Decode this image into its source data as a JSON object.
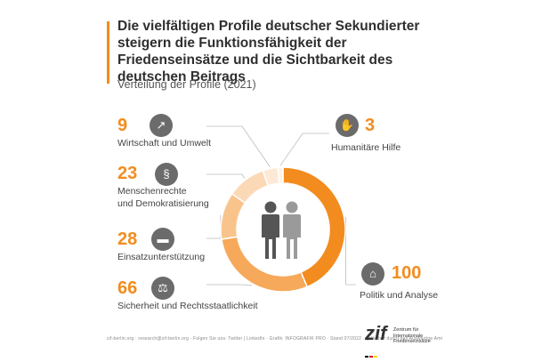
{
  "header": {
    "title": "Die vielfältigen Profile deutscher Sekundierter steigern die Funktionsfähigkeit der Friedenseinsätze und die Sichtbarkeit des deutschen Beitrags",
    "subtitle": "Verteilung der Profile (2021)"
  },
  "chart_data": {
    "type": "pie",
    "title": "Verteilung der Profile (2021)",
    "categories": [
      "Politik und Analyse",
      "Sicherheit und Rechtsstaatlichkeit",
      "Einsatzunterstützung",
      "Menschenrechte und Demokratisierung",
      "Wirtschaft und Umwelt",
      "Humanitäre Hilfe"
    ],
    "values": [
      100,
      66,
      28,
      23,
      9,
      3
    ],
    "colors": [
      "#f28c1e",
      "#f6a95a",
      "#f9c48c",
      "#fbd9b6",
      "#fde9d6",
      "#fef3e8"
    ],
    "legend": "around-chart"
  },
  "labels": {
    "wirtschaft": {
      "value": "9",
      "label": "Wirtschaft und Umwelt",
      "icon": "chart-growth-icon"
    },
    "menschenrechte": {
      "value": "23",
      "label_line1": "Menschenrechte",
      "label_line2": "und Demokratisierung",
      "icon": "law-book-icon"
    },
    "einsatz": {
      "value": "28",
      "label": "Einsatzunterstützung",
      "icon": "armored-vehicle-icon"
    },
    "sicherheit": {
      "value": "66",
      "label": "Sicherheit und Rechtsstaatlichkeit",
      "icon": "scales-icon"
    },
    "humanitaer": {
      "value": "3",
      "label": "Humanitäre Hilfe",
      "icon": "helping-hands-icon"
    },
    "politik": {
      "value": "100",
      "label": "Politik und Analyse",
      "icon": "government-building-icon"
    }
  },
  "footer": {
    "text": "zif-berlin.org  ·  research@zif-berlin.org  ·  Folgen Sie uns: Twitter | LinkedIn  ·  Grafik: INFOGRAFIK PRO  ·  Stand 07/2022  ·  gefördert durch das Auswärtige Amt"
  },
  "logo": {
    "name": "zif",
    "line1": "Zentrum für",
    "line2": "Internationale",
    "line3": "Friedenseinsätze"
  }
}
